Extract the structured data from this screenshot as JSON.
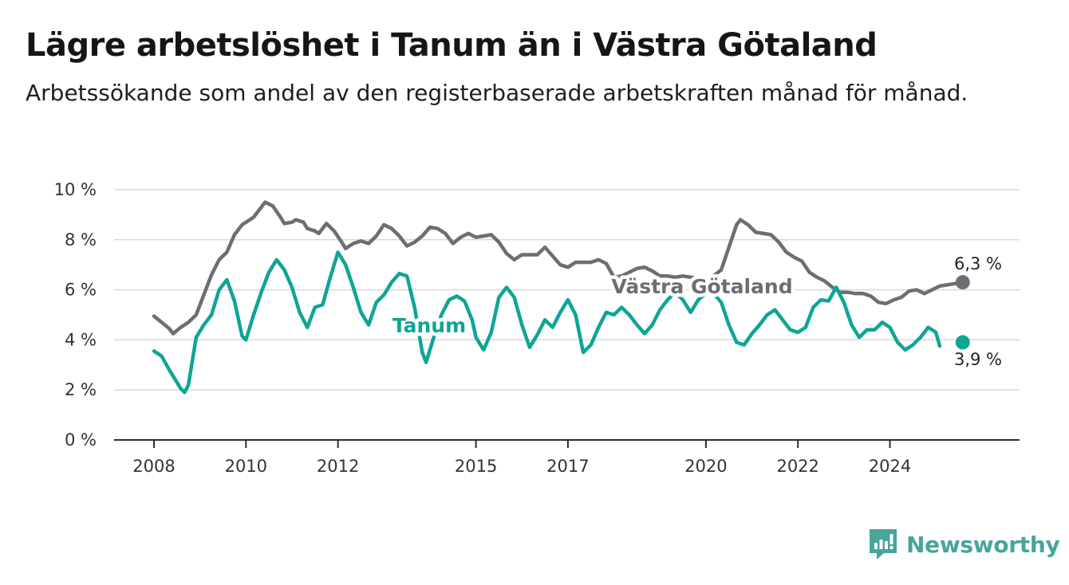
{
  "header": {
    "title": "Lägre arbetslöshet i Tanum än i Västra Götaland",
    "subtitle": "Arbetssökande som andel av den registerbaserade arbetskraften månad för månad."
  },
  "brand": {
    "name": "Newsworthy",
    "icon": "newsworthy-logo-icon",
    "color": "#47a59a"
  },
  "chart_data": {
    "type": "line",
    "title": "Lägre arbetslöshet i Tanum än i Västra Götaland",
    "subtitle": "Arbetssökande som andel av den registerbaserade arbetskraften månad för månad.",
    "xlabel": "",
    "ylabel": "",
    "xlim": [
      "2008-01",
      "2025-12"
    ],
    "ylim": [
      0,
      10
    ],
    "x_ticks": [
      {
        "date": "2008-01",
        "label": "2008"
      },
      {
        "date": "2010-01",
        "label": "2010"
      },
      {
        "date": "2012-01",
        "label": "2012"
      },
      {
        "date": "2015-01",
        "label": "2015"
      },
      {
        "date": "2017-01",
        "label": "2017"
      },
      {
        "date": "2020-01",
        "label": "2020"
      },
      {
        "date": "2022-01",
        "label": "2022"
      },
      {
        "date": "2024-01",
        "label": "2024"
      }
    ],
    "y_ticks": [
      {
        "value": 0,
        "label": "0 %"
      },
      {
        "value": 2,
        "label": "2 %"
      },
      {
        "value": 4,
        "label": "4 %"
      },
      {
        "value": 6,
        "label": "6 %"
      },
      {
        "value": 8,
        "label": "8 %"
      },
      {
        "value": 10,
        "label": "10 %"
      }
    ],
    "grid": true,
    "legend": "none",
    "series": [
      {
        "name": "Västra Götaland",
        "color": "#6e6d73",
        "label": "Västra Götaland",
        "end_label": "6,3 %",
        "end_value": 6.3,
        "end_date": "2025-08",
        "points": [
          [
            "2008-01",
            4.95
          ],
          [
            "2008-03",
            4.7
          ],
          [
            "2008-05",
            4.45
          ],
          [
            "2008-06",
            4.25
          ],
          [
            "2008-08",
            4.5
          ],
          [
            "2008-10",
            4.7
          ],
          [
            "2008-12",
            5.0
          ],
          [
            "2009-02",
            5.8
          ],
          [
            "2009-04",
            6.6
          ],
          [
            "2009-06",
            7.2
          ],
          [
            "2009-08",
            7.5
          ],
          [
            "2009-10",
            8.2
          ],
          [
            "2009-12",
            8.6
          ],
          [
            "2010-02",
            8.8
          ],
          [
            "2010-03",
            8.9
          ],
          [
            "2010-05",
            9.3
          ],
          [
            "2010-06",
            9.5
          ],
          [
            "2010-08",
            9.35
          ],
          [
            "2010-10",
            8.9
          ],
          [
            "2010-11",
            8.65
          ],
          [
            "2011-01",
            8.7
          ],
          [
            "2011-02",
            8.8
          ],
          [
            "2011-04",
            8.7
          ],
          [
            "2011-05",
            8.45
          ],
          [
            "2011-07",
            8.35
          ],
          [
            "2011-08",
            8.25
          ],
          [
            "2011-10",
            8.65
          ],
          [
            "2011-12",
            8.35
          ],
          [
            "2012-02",
            7.9
          ],
          [
            "2012-03",
            7.65
          ],
          [
            "2012-05",
            7.85
          ],
          [
            "2012-07",
            7.95
          ],
          [
            "2012-09",
            7.85
          ],
          [
            "2012-11",
            8.15
          ],
          [
            "2013-01",
            8.6
          ],
          [
            "2013-03",
            8.45
          ],
          [
            "2013-05",
            8.15
          ],
          [
            "2013-07",
            7.75
          ],
          [
            "2013-09",
            7.9
          ],
          [
            "2013-11",
            8.15
          ],
          [
            "2014-01",
            8.5
          ],
          [
            "2014-03",
            8.45
          ],
          [
            "2014-05",
            8.25
          ],
          [
            "2014-07",
            7.85
          ],
          [
            "2014-09",
            8.1
          ],
          [
            "2014-11",
            8.25
          ],
          [
            "2015-01",
            8.1
          ],
          [
            "2015-03",
            8.15
          ],
          [
            "2015-05",
            8.2
          ],
          [
            "2015-07",
            7.9
          ],
          [
            "2015-09",
            7.45
          ],
          [
            "2015-11",
            7.2
          ],
          [
            "2016-01",
            7.4
          ],
          [
            "2016-03",
            7.4
          ],
          [
            "2016-05",
            7.4
          ],
          [
            "2016-07",
            7.7
          ],
          [
            "2016-09",
            7.35
          ],
          [
            "2016-11",
            7.0
          ],
          [
            "2017-01",
            6.9
          ],
          [
            "2017-03",
            7.1
          ],
          [
            "2017-05",
            7.1
          ],
          [
            "2017-07",
            7.1
          ],
          [
            "2017-09",
            7.2
          ],
          [
            "2017-11",
            7.05
          ],
          [
            "2018-01",
            6.5
          ],
          [
            "2018-03",
            6.55
          ],
          [
            "2018-05",
            6.7
          ],
          [
            "2018-07",
            6.85
          ],
          [
            "2018-09",
            6.9
          ],
          [
            "2018-11",
            6.75
          ],
          [
            "2019-01",
            6.55
          ],
          [
            "2019-03",
            6.55
          ],
          [
            "2019-05",
            6.5
          ],
          [
            "2019-07",
            6.55
          ],
          [
            "2019-09",
            6.5
          ],
          [
            "2019-11",
            6.45
          ],
          [
            "2020-01",
            6.4
          ],
          [
            "2020-03",
            6.55
          ],
          [
            "2020-05",
            6.8
          ],
          [
            "2020-07",
            7.7
          ],
          [
            "2020-09",
            8.6
          ],
          [
            "2020-10",
            8.8
          ],
          [
            "2020-12",
            8.6
          ],
          [
            "2021-02",
            8.3
          ],
          [
            "2021-04",
            8.25
          ],
          [
            "2021-06",
            8.2
          ],
          [
            "2021-08",
            7.9
          ],
          [
            "2021-10",
            7.5
          ],
          [
            "2021-12",
            7.3
          ],
          [
            "2022-02",
            7.15
          ],
          [
            "2022-04",
            6.7
          ],
          [
            "2022-06",
            6.5
          ],
          [
            "2022-08",
            6.35
          ],
          [
            "2022-10",
            6.1
          ],
          [
            "2022-12",
            5.9
          ],
          [
            "2023-02",
            5.9
          ],
          [
            "2023-04",
            5.85
          ],
          [
            "2023-06",
            5.85
          ],
          [
            "2023-08",
            5.75
          ],
          [
            "2023-10",
            5.5
          ],
          [
            "2023-12",
            5.45
          ],
          [
            "2024-02",
            5.6
          ],
          [
            "2024-04",
            5.7
          ],
          [
            "2024-06",
            5.95
          ],
          [
            "2024-08",
            6.0
          ],
          [
            "2024-10",
            5.85
          ],
          [
            "2024-12",
            6.0
          ],
          [
            "2025-02",
            6.15
          ],
          [
            "2025-04",
            6.2
          ],
          [
            "2025-06",
            6.25
          ],
          [
            "2025-08",
            6.3
          ]
        ]
      },
      {
        "name": "Tanum",
        "color": "#0fa595",
        "label": "Tanum",
        "end_label": "3,9 %",
        "end_value": 3.9,
        "end_date": "2025-08",
        "points": [
          [
            "2008-01",
            3.55
          ],
          [
            "2008-03",
            3.35
          ],
          [
            "2008-05",
            2.8
          ],
          [
            "2008-06",
            2.55
          ],
          [
            "2008-08",
            2.05
          ],
          [
            "2008-09",
            1.9
          ],
          [
            "2008-10",
            2.2
          ],
          [
            "2008-12",
            4.1
          ],
          [
            "2009-02",
            4.6
          ],
          [
            "2009-04",
            5.0
          ],
          [
            "2009-06",
            6.0
          ],
          [
            "2009-08",
            6.4
          ],
          [
            "2009-10",
            5.55
          ],
          [
            "2009-12",
            4.15
          ],
          [
            "2010-01",
            4.0
          ],
          [
            "2010-03",
            5.0
          ],
          [
            "2010-05",
            5.9
          ],
          [
            "2010-07",
            6.7
          ],
          [
            "2010-09",
            7.2
          ],
          [
            "2010-11",
            6.8
          ],
          [
            "2011-01",
            6.1
          ],
          [
            "2011-03",
            5.1
          ],
          [
            "2011-05",
            4.5
          ],
          [
            "2011-07",
            5.3
          ],
          [
            "2011-09",
            5.4
          ],
          [
            "2011-11",
            6.5
          ],
          [
            "2012-01",
            7.5
          ],
          [
            "2012-03",
            7.0
          ],
          [
            "2012-05",
            6.1
          ],
          [
            "2012-07",
            5.1
          ],
          [
            "2012-09",
            4.6
          ],
          [
            "2012-11",
            5.5
          ],
          [
            "2013-01",
            5.8
          ],
          [
            "2013-03",
            6.3
          ],
          [
            "2013-05",
            6.65
          ],
          [
            "2013-07",
            6.55
          ],
          [
            "2013-09",
            5.3
          ],
          [
            "2013-11",
            3.5
          ],
          [
            "2013-12",
            3.1
          ],
          [
            "2014-02",
            4.1
          ],
          [
            "2014-04",
            5.0
          ],
          [
            "2014-06",
            5.6
          ],
          [
            "2014-08",
            5.75
          ],
          [
            "2014-10",
            5.55
          ],
          [
            "2014-12",
            4.8
          ],
          [
            "2015-01",
            4.1
          ],
          [
            "2015-03",
            3.6
          ],
          [
            "2015-05",
            4.3
          ],
          [
            "2015-07",
            5.7
          ],
          [
            "2015-09",
            6.1
          ],
          [
            "2015-11",
            5.7
          ],
          [
            "2016-01",
            4.6
          ],
          [
            "2016-03",
            3.7
          ],
          [
            "2016-05",
            4.2
          ],
          [
            "2016-07",
            4.8
          ],
          [
            "2016-09",
            4.5
          ],
          [
            "2016-11",
            5.1
          ],
          [
            "2017-01",
            5.6
          ],
          [
            "2017-03",
            5.0
          ],
          [
            "2017-05",
            3.5
          ],
          [
            "2017-07",
            3.8
          ],
          [
            "2017-09",
            4.5
          ],
          [
            "2017-11",
            5.1
          ],
          [
            "2018-01",
            5.0
          ],
          [
            "2018-03",
            5.3
          ],
          [
            "2018-05",
            5.0
          ],
          [
            "2018-07",
            4.6
          ],
          [
            "2018-09",
            4.25
          ],
          [
            "2018-11",
            4.6
          ],
          [
            "2019-01",
            5.2
          ],
          [
            "2019-03",
            5.6
          ],
          [
            "2019-05",
            5.9
          ],
          [
            "2019-07",
            5.6
          ],
          [
            "2019-09",
            5.1
          ],
          [
            "2019-11",
            5.6
          ],
          [
            "2020-01",
            5.85
          ],
          [
            "2020-03",
            5.85
          ],
          [
            "2020-05",
            5.5
          ],
          [
            "2020-07",
            4.6
          ],
          [
            "2020-09",
            3.9
          ],
          [
            "2020-11",
            3.8
          ],
          [
            "2021-01",
            4.25
          ],
          [
            "2021-03",
            4.6
          ],
          [
            "2021-05",
            5.0
          ],
          [
            "2021-07",
            5.2
          ],
          [
            "2021-09",
            4.8
          ],
          [
            "2021-11",
            4.4
          ],
          [
            "2022-01",
            4.3
          ],
          [
            "2022-03",
            4.5
          ],
          [
            "2022-05",
            5.3
          ],
          [
            "2022-07",
            5.6
          ],
          [
            "2022-09",
            5.55
          ],
          [
            "2022-11",
            6.1
          ],
          [
            "2023-01",
            5.5
          ],
          [
            "2023-03",
            4.6
          ],
          [
            "2023-05",
            4.1
          ],
          [
            "2023-07",
            4.4
          ],
          [
            "2023-09",
            4.4
          ],
          [
            "2023-11",
            4.7
          ],
          [
            "2024-01",
            4.5
          ],
          [
            "2024-03",
            3.9
          ],
          [
            "2024-05",
            3.6
          ],
          [
            "2024-07",
            3.8
          ],
          [
            "2024-09",
            4.1
          ],
          [
            "2024-11",
            4.5
          ],
          [
            "2025-01",
            4.3
          ],
          [
            "2025-02",
            3.75
          ]
        ]
      }
    ]
  }
}
